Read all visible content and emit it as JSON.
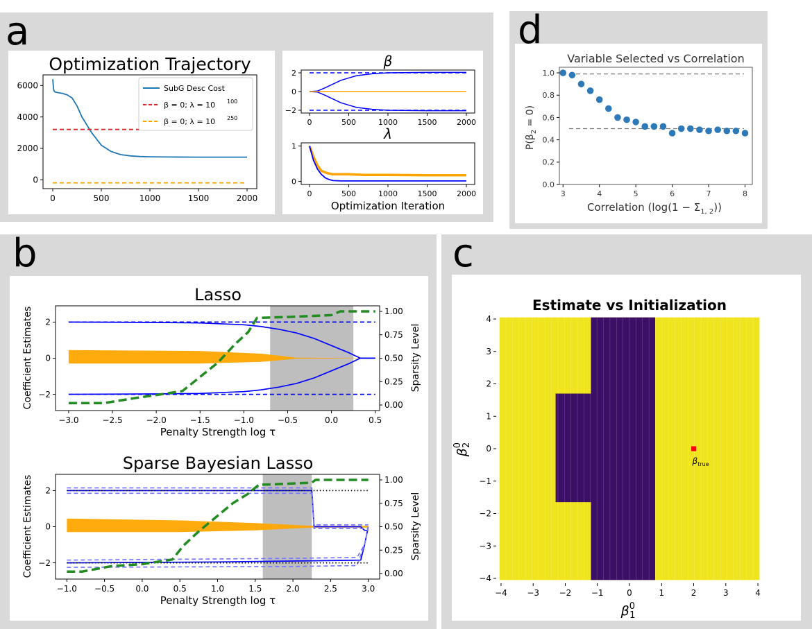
{
  "panels": {
    "a": {
      "label": "a"
    },
    "b": {
      "label": "b"
    },
    "c": {
      "label": "c"
    },
    "d": {
      "label": "d"
    }
  },
  "chart_data": [
    {
      "id": "a_traj",
      "type": "line",
      "title": "Optimization Trajectory",
      "xlim": [
        0,
        2000
      ],
      "ylim": [
        -300,
        6500
      ],
      "xticks": [
        "0",
        "500",
        "1000",
        "1500",
        "2000"
      ],
      "yticks": [
        "0",
        "2000",
        "4000",
        "6000"
      ],
      "series": [
        {
          "name": "SubG Desc Cost",
          "color": "#1f77b4",
          "style": "solid",
          "x": [
            0,
            10,
            20,
            50,
            100,
            150,
            200,
            250,
            300,
            350,
            400,
            450,
            500,
            600,
            700,
            800,
            900,
            1000,
            1200,
            1500,
            1800,
            2000
          ],
          "y": [
            6400,
            5700,
            5600,
            5550,
            5500,
            5400,
            5200,
            4700,
            4000,
            3500,
            3000,
            2600,
            2200,
            1800,
            1600,
            1520,
            1480,
            1460,
            1450,
            1440,
            1440,
            1440
          ]
        },
        {
          "name": "β = 0; λ = 10^100",
          "color": "#d62728",
          "style": "dashed",
          "x": [
            0,
            2000
          ],
          "y": [
            3200,
            3200
          ]
        },
        {
          "name": "β = 0; λ = 10^250",
          "color": "#ffa500",
          "style": "dashed",
          "x": [
            0,
            2000
          ],
          "y": [
            -200,
            -200
          ]
        }
      ],
      "legend": {
        "entries": [
          "SubG Desc Cost",
          "β = 0; λ = 10",
          "β = 0; λ = 10"
        ],
        "exponents": [
          "",
          "100",
          "250"
        ],
        "position": "top-right"
      }
    },
    {
      "id": "a_beta",
      "type": "line",
      "title": "β",
      "xlim": [
        0,
        2000
      ],
      "ylim": [
        -2.3,
        2.3
      ],
      "xticks": [
        "0",
        "500",
        "1000",
        "1500",
        "2000"
      ],
      "yticks": [
        "2",
        "0",
        "−2"
      ],
      "series": [
        {
          "name": "beta1",
          "color": "#0000ff",
          "style": "solid",
          "x": [
            0,
            100,
            200,
            400,
            600,
            800,
            1000,
            1500,
            2000
          ],
          "y": [
            0,
            0.05,
            0.4,
            1.2,
            1.7,
            1.9,
            2.0,
            2.05,
            2.05
          ]
        },
        {
          "name": "beta2",
          "color": "#0000ff",
          "style": "solid",
          "x": [
            0,
            100,
            200,
            400,
            600,
            800,
            1000,
            1500,
            2000
          ],
          "y": [
            0,
            -0.05,
            -0.4,
            -1.2,
            -1.7,
            -1.9,
            -2.0,
            -2.05,
            -2.05
          ]
        },
        {
          "name": "zeros",
          "color": "#ffa500",
          "style": "solid",
          "x": [
            0,
            2000
          ],
          "y": [
            0,
            0
          ]
        },
        {
          "name": "true_pos",
          "color": "#0000ff",
          "style": "dashed",
          "x": [
            0,
            2000
          ],
          "y": [
            2,
            2
          ]
        },
        {
          "name": "true_neg",
          "color": "#0000ff",
          "style": "dashed",
          "x": [
            0,
            2000
          ],
          "y": [
            -2,
            -2
          ]
        }
      ]
    },
    {
      "id": "a_lambda",
      "type": "line",
      "title": "λ",
      "xlabel": "Optimization Iteration",
      "xlim": [
        0,
        2000
      ],
      "ylim": [
        -0.05,
        1.05
      ],
      "xticks": [
        "0",
        "500",
        "1000",
        "1500",
        "2000"
      ],
      "yticks": [
        "1",
        "0"
      ],
      "series": [
        {
          "name": "lambda_noise",
          "color": "#ffa500",
          "style": "solid",
          "x": [
            0,
            50,
            100,
            150,
            200,
            250,
            300,
            400,
            500,
            700,
            1000,
            1500,
            2000
          ],
          "y": [
            1.0,
            0.7,
            0.45,
            0.3,
            0.25,
            0.22,
            0.2,
            0.2,
            0.2,
            0.18,
            0.18,
            0.17,
            0.17
          ]
        },
        {
          "name": "lambda_signal",
          "color": "#0000ff",
          "style": "solid",
          "x": [
            0,
            50,
            100,
            150,
            200,
            250,
            300,
            400,
            2000
          ],
          "y": [
            1.0,
            0.6,
            0.35,
            0.2,
            0.1,
            0.05,
            0.02,
            0.01,
            0.01
          ]
        }
      ]
    },
    {
      "id": "b_lasso",
      "type": "line",
      "title": "Lasso",
      "xlabel": "Penalty Strength log τ",
      "ylabel": "Coefficient Estimates",
      "ylabel2": "Sparsity Level",
      "xlim": [
        -3.15,
        0.55
      ],
      "ylim": [
        -2.9,
        2.9
      ],
      "ylim2": [
        0,
        1
      ],
      "xticks": [
        "−3.0",
        "−2.5",
        "−2.0",
        "−1.5",
        "−1.0",
        "−0.5",
        "0.0",
        "0.5"
      ],
      "yticks": [
        "2",
        "0",
        "−2"
      ],
      "yticks2": [
        "0.00",
        "0.25",
        "0.50",
        "0.75",
        "1.00"
      ],
      "shaded_region": [
        -0.7,
        0.25
      ],
      "series": [
        {
          "name": "beta_pos",
          "color": "#0000ff",
          "style": "solid",
          "x": [
            -3.0,
            -2.0,
            -1.5,
            -1.0,
            -0.8,
            -0.6,
            -0.4,
            -0.2,
            0.0,
            0.2,
            0.33,
            0.5
          ],
          "y": [
            2.0,
            1.98,
            1.95,
            1.85,
            1.75,
            1.6,
            1.4,
            1.1,
            0.7,
            0.3,
            0.0,
            0.0
          ]
        },
        {
          "name": "beta_neg",
          "color": "#0000ff",
          "style": "solid",
          "x": [
            -3.0,
            -2.0,
            -1.5,
            -1.0,
            -0.8,
            -0.6,
            -0.4,
            -0.2,
            0.0,
            0.2,
            0.33,
            0.5
          ],
          "y": [
            -2.0,
            -1.98,
            -1.95,
            -1.85,
            -1.75,
            -1.6,
            -1.4,
            -1.1,
            -0.7,
            -0.3,
            0.0,
            0.0
          ]
        },
        {
          "name": "true_pos",
          "color": "#0000ff",
          "style": "dashed",
          "x": [
            -3.0,
            0.5
          ],
          "y": [
            2,
            2
          ]
        },
        {
          "name": "true_neg",
          "color": "#0000ff",
          "style": "dashed",
          "x": [
            -3.0,
            0.5
          ],
          "y": [
            -2,
            -2
          ]
        },
        {
          "name": "sparsity",
          "color": "#228b22",
          "style": "thick-dashed",
          "axis": "right",
          "x": [
            -3.0,
            -2.6,
            -2.2,
            -1.9,
            -1.7,
            -1.5,
            -1.3,
            -1.1,
            -0.95,
            -0.85,
            -0.5,
            0.0,
            0.1,
            0.5
          ],
          "y": [
            0.02,
            0.02,
            0.08,
            0.12,
            0.15,
            0.3,
            0.45,
            0.65,
            0.78,
            0.93,
            0.94,
            0.96,
            1.0,
            1.0
          ]
        }
      ],
      "noise_band": {
        "color": "#ffa500",
        "x": [
          -3.0,
          -1.5,
          -0.8,
          -0.4,
          0.5
        ],
        "upper": [
          0.45,
          0.4,
          0.25,
          0.03,
          0.0
        ],
        "lower": [
          -0.3,
          -0.3,
          -0.2,
          -0.03,
          0.0
        ]
      }
    },
    {
      "id": "b_sbl",
      "type": "line",
      "title": "Sparse Bayesian Lasso",
      "xlabel": "Penalty Strength log τ",
      "ylabel": "Coefficient Estimates",
      "ylabel2": "Sparsity Level",
      "xlim": [
        -1.15,
        3.15
      ],
      "ylim": [
        -2.9,
        2.9
      ],
      "ylim2": [
        0,
        1
      ],
      "xticks": [
        "−1.0",
        "−0.5",
        "0.0",
        "0.5",
        "1.0",
        "1.5",
        "2.0",
        "2.5",
        "3.0"
      ],
      "yticks": [
        "2",
        "0",
        "−2"
      ],
      "yticks2": [
        "0.00",
        "0.25",
        "0.50",
        "0.75",
        "1.00"
      ],
      "shaded_region": [
        1.6,
        2.25
      ],
      "series": [
        {
          "name": "beta_pos",
          "color": "#0000ff",
          "style": "solid",
          "x": [
            -1.0,
            2.25,
            2.28,
            2.9,
            2.95,
            3.0
          ],
          "y": [
            2.0,
            2.0,
            0.0,
            0.0,
            -0.2,
            -0.2
          ]
        },
        {
          "name": "beta_neg",
          "color": "#0000ff",
          "style": "solid",
          "x": [
            -1.0,
            0.0,
            1.0,
            2.0,
            2.9,
            2.95,
            3.0
          ],
          "y": [
            -2.0,
            -1.98,
            -1.95,
            -1.9,
            -1.85,
            -1.0,
            0.0
          ]
        },
        {
          "name": "ci_pos_hi",
          "color": "#7777ff",
          "style": "dashed",
          "x": [
            -1.0,
            2.25,
            2.28,
            3.0
          ],
          "y": [
            2.15,
            2.15,
            0.1,
            0.1
          ]
        },
        {
          "name": "ci_pos_lo",
          "color": "#7777ff",
          "style": "dashed",
          "x": [
            -1.0,
            2.25,
            2.28,
            3.0
          ],
          "y": [
            1.85,
            1.85,
            -0.1,
            -0.1
          ]
        },
        {
          "name": "ci_neg_hi",
          "color": "#7777ff",
          "style": "dashed",
          "x": [
            -1.0,
            2.0,
            2.85,
            2.95,
            3.0
          ],
          "y": [
            -1.85,
            -1.75,
            -1.7,
            -1.0,
            0.0
          ]
        },
        {
          "name": "ci_neg_lo",
          "color": "#7777ff",
          "style": "dashed",
          "x": [
            -1.0,
            2.0,
            2.85,
            2.95,
            3.0
          ],
          "y": [
            -2.25,
            -2.2,
            -2.15,
            -1.0,
            0.0
          ]
        },
        {
          "name": "true_pos",
          "color": "#000000",
          "style": "dotted",
          "x": [
            -1.0,
            3.0
          ],
          "y": [
            2,
            2
          ]
        },
        {
          "name": "true_neg",
          "color": "#000000",
          "style": "dotted",
          "x": [
            -1.0,
            3.0
          ],
          "y": [
            -2,
            -2
          ]
        },
        {
          "name": "sparsity",
          "color": "#228b22",
          "style": "thick-dashed",
          "axis": "right",
          "x": [
            -1.0,
            -0.8,
            -0.4,
            0.0,
            0.4,
            0.55,
            0.75,
            0.9,
            1.05,
            1.2,
            1.4,
            1.55,
            1.65,
            2.25,
            2.3,
            3.0
          ],
          "y": [
            0.02,
            0.02,
            0.08,
            0.1,
            0.15,
            0.3,
            0.45,
            0.55,
            0.65,
            0.75,
            0.85,
            0.95,
            0.95,
            0.97,
            1.0,
            1.0
          ]
        }
      ],
      "noise_band": {
        "color": "#ffa500",
        "x": [
          -1.0,
          0.5,
          1.5,
          2.25,
          3.0
        ],
        "upper": [
          0.45,
          0.35,
          0.2,
          0.05,
          0.05
        ],
        "lower": [
          -0.3,
          -0.3,
          -0.2,
          -0.05,
          -0.05
        ]
      }
    },
    {
      "id": "c_heatmap",
      "type": "heatmap",
      "title": "Estimate vs Initialization",
      "xlabel": "β",
      "xlabel_super": "0",
      "xlabel_sub": "1",
      "ylabel": "β",
      "ylabel_super": "0",
      "ylabel_sub": "2",
      "xlim": [
        -4.15,
        4.15
      ],
      "ylim": [
        -4.15,
        4.15
      ],
      "xticks": [
        "−4",
        "−3",
        "−2",
        "−1",
        "0",
        "1",
        "2",
        "3",
        "4"
      ],
      "yticks": [
        "4",
        "3",
        "2",
        "1",
        "0",
        "−1",
        "−2",
        "−3",
        "−4"
      ],
      "colors": {
        "selected": "#f0e41e",
        "zero": "#3b0f65"
      },
      "regions": [
        {
          "x0": -1.2,
          "x1": 0.8,
          "y0": -4.05,
          "y1": 4.05,
          "value": "zero"
        },
        {
          "x0": -2.3,
          "x1": -1.2,
          "y0": -1.65,
          "y1": 1.7,
          "value": "zero"
        }
      ],
      "marker": {
        "x": 2.0,
        "y": 0.0,
        "color": "#ff0000",
        "label": "β",
        "label_sub": "true"
      }
    },
    {
      "id": "d_scatter",
      "type": "scatter",
      "title": "Variable Selected vs Correlation",
      "xlabel": "Correlation (log(1 − Σ",
      "xlabel_sub": "1, 2",
      "xlabel_end": "))",
      "ylabel": "P(β",
      "ylabel_sub": "2",
      "ylabel_end": " = 0)",
      "xlim": [
        2.9,
        8.2
      ],
      "ylim": [
        0,
        1.05
      ],
      "xticks": [
        "3",
        "4",
        "5",
        "6",
        "7",
        "8"
      ],
      "yticks": [
        "1.0",
        "0.8",
        "0.6",
        "0.4",
        "0.2",
        "0.0"
      ],
      "x": [
        3.0,
        3.25,
        3.5,
        3.75,
        4.0,
        4.25,
        4.5,
        4.75,
        5.0,
        5.25,
        5.5,
        5.75,
        6.0,
        6.25,
        6.5,
        6.75,
        7.0,
        7.25,
        7.5,
        7.75,
        8.0
      ],
      "y": [
        1.0,
        0.98,
        0.9,
        0.84,
        0.76,
        0.68,
        0.6,
        0.58,
        0.56,
        0.52,
        0.52,
        0.52,
        0.46,
        0.5,
        0.5,
        0.49,
        0.48,
        0.49,
        0.48,
        0.48,
        0.46
      ],
      "ref_lines": [
        0.99,
        0.5
      ],
      "color": "#2e7ab8"
    }
  ]
}
